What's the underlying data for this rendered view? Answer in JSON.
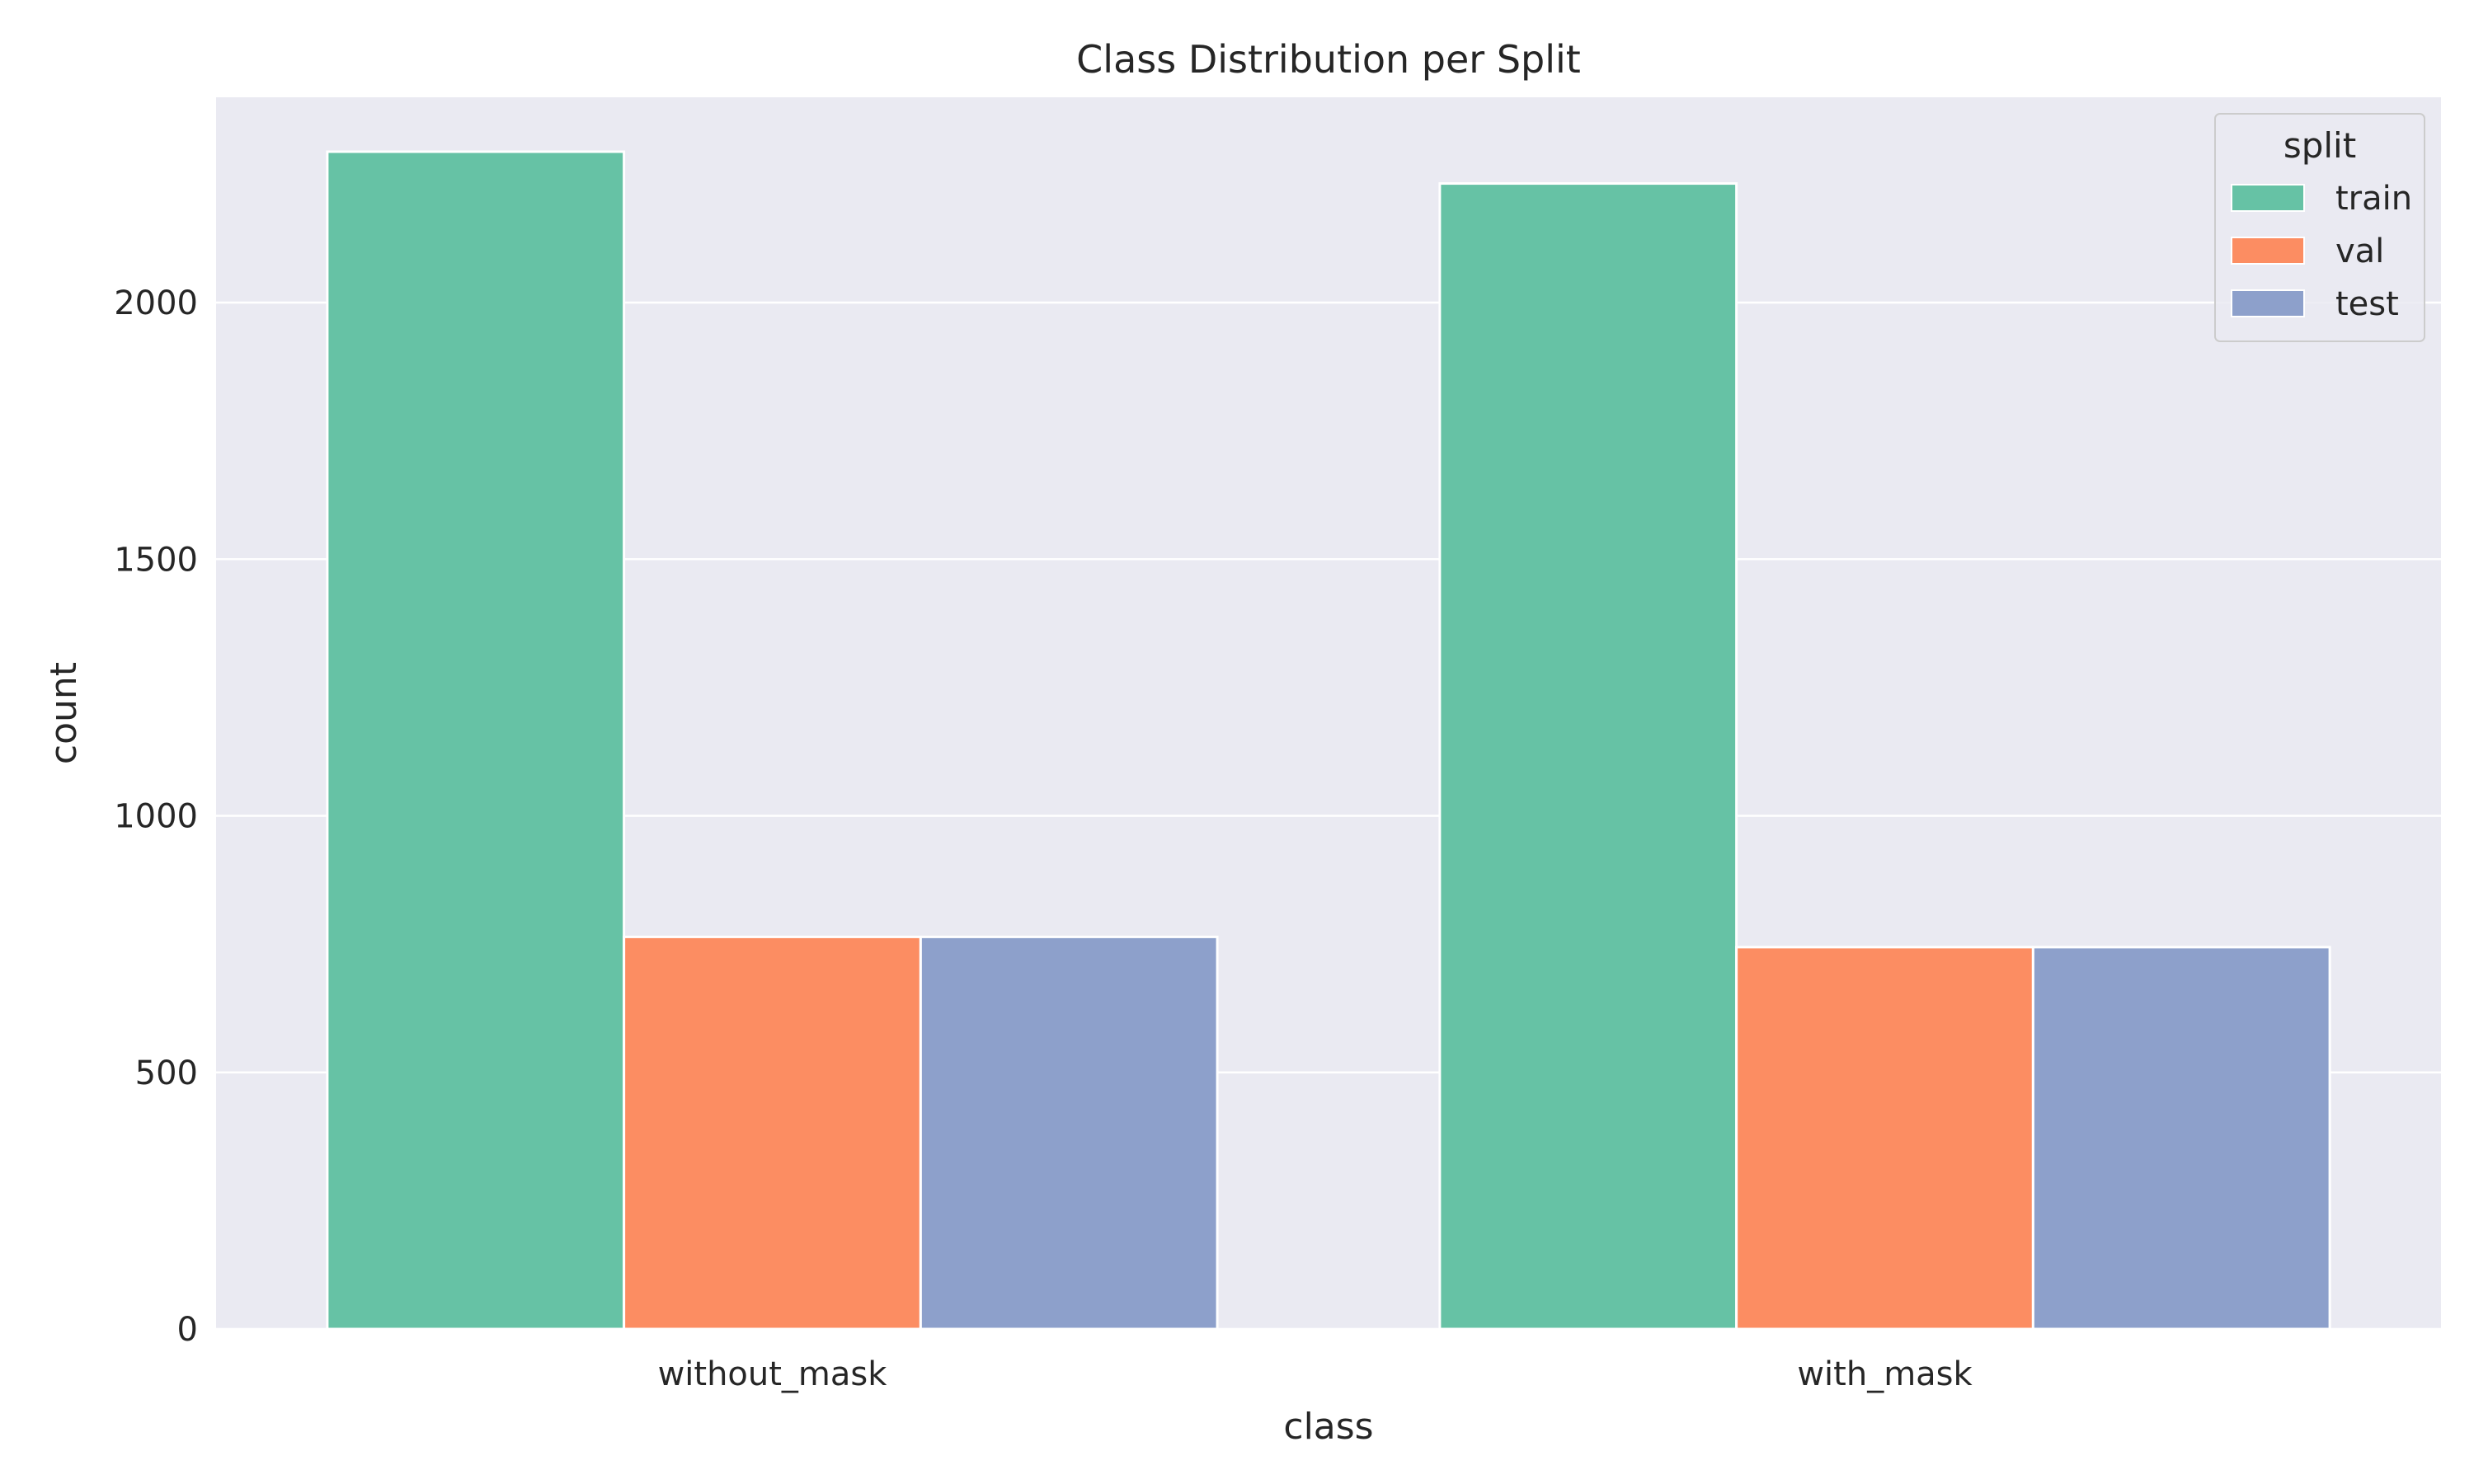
{
  "chart_data": {
    "type": "bar",
    "title": "Class Distribution per Split",
    "xlabel": "class",
    "ylabel": "count",
    "categories": [
      "without_mask",
      "with_mask"
    ],
    "series": [
      {
        "name": "train",
        "values": [
          2294,
          2232
        ],
        "color": "#66c2a5"
      },
      {
        "name": "val",
        "values": [
          764,
          744
        ],
        "color": "#fc8d62"
      },
      {
        "name": "test",
        "values": [
          764,
          744
        ],
        "color": "#8da0cb"
      }
    ],
    "ylim": [
      0,
      2400
    ],
    "yticks": [
      0,
      500,
      1000,
      1500,
      2000
    ],
    "ytick_labels": [
      "0",
      "500",
      "1000",
      "1500",
      "2000"
    ],
    "grid": true,
    "legend": {
      "title": "split",
      "placement": "top-right"
    },
    "colors": {
      "plot_background": "#eaeaf2",
      "grid": "#ffffff",
      "text": "#262626"
    }
  }
}
